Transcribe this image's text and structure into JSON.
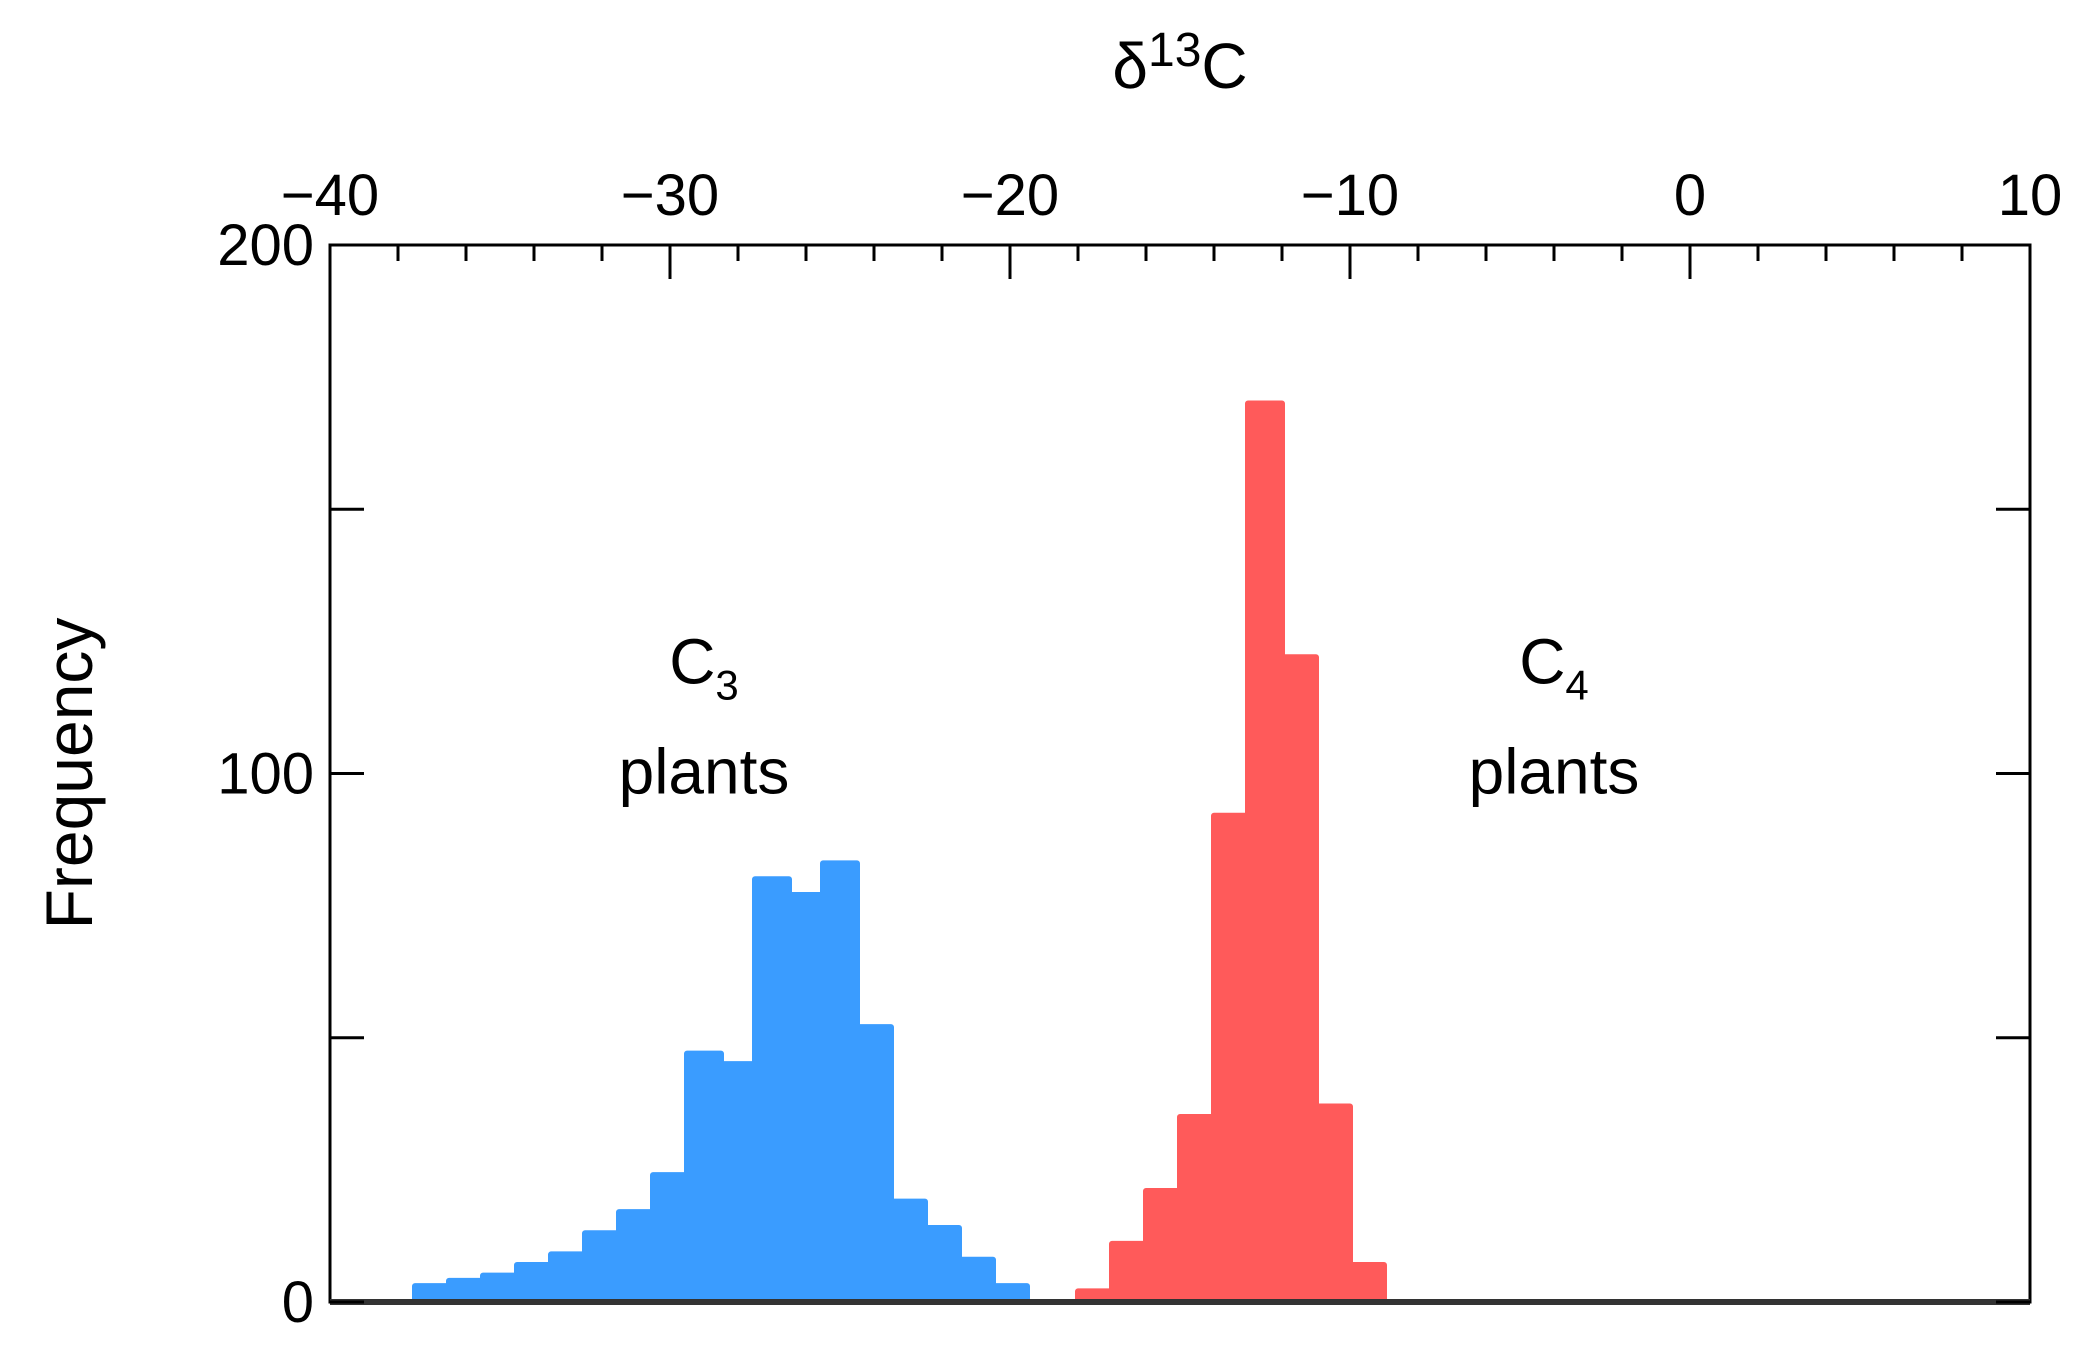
{
  "chart_data": {
    "type": "bar",
    "title": "",
    "xlabel": {
      "symbol": "δ",
      "sup": "13",
      "base": "C"
    },
    "ylabel": "Frequency",
    "xlim": [
      -40,
      10
    ],
    "ylim": [
      0,
      200
    ],
    "x_ticks": [
      "−40",
      "−30",
      "−20",
      "−10",
      "0",
      "10"
    ],
    "x_tick_values": [
      -40,
      -30,
      -20,
      -10,
      0,
      10
    ],
    "y_ticks": [
      "0",
      "100",
      "200"
    ],
    "y_tick_values": [
      0,
      100,
      200
    ],
    "bin_width": 1,
    "series": [
      {
        "name": "C3 plants",
        "color": "#3a9cff",
        "bins": [
          {
            "x": -37,
            "y": 3
          },
          {
            "x": -36,
            "y": 4
          },
          {
            "x": -35,
            "y": 5
          },
          {
            "x": -34,
            "y": 7
          },
          {
            "x": -33,
            "y": 9
          },
          {
            "x": -32,
            "y": 13
          },
          {
            "x": -31,
            "y": 17
          },
          {
            "x": -30,
            "y": 24
          },
          {
            "x": -29,
            "y": 47
          },
          {
            "x": -28,
            "y": 45
          },
          {
            "x": -27,
            "y": 80
          },
          {
            "x": -26,
            "y": 77
          },
          {
            "x": -25,
            "y": 83
          },
          {
            "x": -24,
            "y": 52
          },
          {
            "x": -23,
            "y": 19
          },
          {
            "x": -22,
            "y": 14
          },
          {
            "x": -21,
            "y": 8
          },
          {
            "x": -20,
            "y": 3
          }
        ]
      },
      {
        "name": "C4 plants",
        "color": "#ff5a5a",
        "bins": [
          {
            "x": -17.5,
            "y": 2
          },
          {
            "x": -16.5,
            "y": 11
          },
          {
            "x": -15.5,
            "y": 21
          },
          {
            "x": -14.5,
            "y": 35
          },
          {
            "x": -13.5,
            "y": 92
          },
          {
            "x": -12.5,
            "y": 170
          },
          {
            "x": -11.5,
            "y": 122
          },
          {
            "x": -10.5,
            "y": 37
          },
          {
            "x": -9.5,
            "y": 7
          }
        ]
      }
    ],
    "annotations": [
      {
        "base": "C",
        "sub": "3",
        "line2": "plants",
        "x": -29,
        "y": 100
      },
      {
        "base": "C",
        "sub": "4",
        "line2": "plants",
        "x": -4,
        "y": 100
      }
    ]
  }
}
